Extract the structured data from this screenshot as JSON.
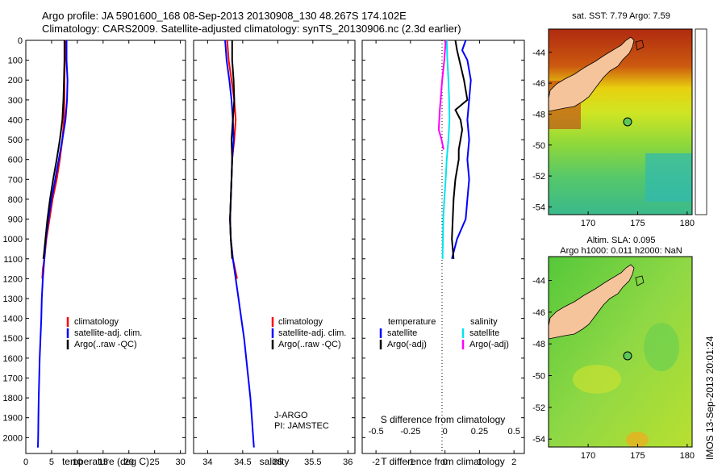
{
  "header": {
    "line1": "Argo profile: JA 5901600_168 08-Sep-2013 20130908_130 48.267S 174.102E",
    "line2": "Climatology: CARS2009. Satellite-adjusted climatology: synTS_20130906.nc (2.3d earlier)"
  },
  "colors": {
    "climatology": "#ff0000",
    "satellite": "#0000ff",
    "argo": "#000000",
    "salinity_satellite": "#00e5ee",
    "salinity_argo": "#ff00ff",
    "land": "#f6c49b"
  },
  "chart_data": [
    {
      "type": "line",
      "name": "temperature-panel",
      "xlabel": "temperature (deg C)",
      "xlim": [
        0,
        31
      ],
      "xticks": [
        0,
        5,
        10,
        15,
        20,
        25,
        30
      ],
      "ylim": [
        2080,
        0
      ],
      "yticks": [
        0,
        100,
        200,
        300,
        400,
        500,
        600,
        700,
        800,
        900,
        1000,
        1100,
        1200,
        1300,
        1400,
        1500,
        1600,
        1700,
        1800,
        1900,
        2000
      ],
      "legend": {
        "placement": "lower-center",
        "entries": [
          "climatology",
          "satellite-adj. clim.",
          "Argo(..raw -QC)"
        ]
      },
      "series": [
        {
          "name": "climatology",
          "color": "#ff0000",
          "x": [
            7.6,
            7.6,
            7.5,
            7.5,
            7.4,
            7.1,
            6.6,
            6.0,
            5.2,
            4.6,
            4.0,
            3.6,
            3.3,
            3.2
          ],
          "y": [
            0,
            100,
            200,
            300,
            400,
            500,
            600,
            700,
            800,
            900,
            1000,
            1100,
            1150,
            1200
          ]
        },
        {
          "name": "satellite-adj. clim.",
          "color": "#0000ff",
          "x": [
            7.9,
            7.9,
            8.1,
            8.0,
            7.7,
            7.1,
            6.4,
            5.7,
            5.0,
            4.4,
            3.9,
            3.6,
            3.3,
            3.1,
            3.0,
            2.85,
            2.7,
            2.6,
            2.5,
            2.45,
            2.4,
            2.35
          ],
          "y": [
            0,
            100,
            200,
            300,
            400,
            500,
            600,
            700,
            800,
            900,
            1000,
            1100,
            1200,
            1300,
            1400,
            1500,
            1600,
            1700,
            1800,
            1900,
            2000,
            2050
          ]
        },
        {
          "name": "Argo(..raw -QC)",
          "color": "#000000",
          "x": [
            7.5,
            7.5,
            7.4,
            7.3,
            7.1,
            6.6,
            6.0,
            5.3,
            4.7,
            4.2,
            3.8,
            3.5,
            3.4
          ],
          "y": [
            0,
            100,
            200,
            300,
            400,
            500,
            600,
            700,
            800,
            900,
            1000,
            1080,
            1100
          ]
        }
      ]
    },
    {
      "type": "line",
      "name": "salinity-panel",
      "xlabel": "salinity",
      "xlim": [
        33.8,
        36.1
      ],
      "xticks": [
        34,
        34.5,
        35,
        35.5,
        36
      ],
      "ylim": [
        2080,
        0
      ],
      "legend": {
        "placement": "lower-right",
        "entries": [
          "climatology",
          "satellite-adj. clim.",
          "Argo(..raw -QC)"
        ]
      },
      "annotations": [
        "J-ARGO",
        "PI: JAMSTEC"
      ],
      "series": [
        {
          "name": "climatology",
          "color": "#ff0000",
          "x": [
            34.28,
            34.3,
            34.34,
            34.38,
            34.4,
            34.38,
            34.35,
            34.34,
            34.33,
            34.32,
            34.33,
            34.36,
            34.39,
            34.42
          ],
          "y": [
            0,
            100,
            200,
            300,
            400,
            500,
            600,
            700,
            800,
            900,
            1000,
            1100,
            1150,
            1200
          ]
        },
        {
          "name": "satellite-adj. clim.",
          "color": "#0000ff",
          "x": [
            34.25,
            34.27,
            34.31,
            34.34,
            34.36,
            34.37,
            34.35,
            34.34,
            34.33,
            34.32,
            34.33,
            34.36,
            34.4,
            34.44,
            34.48,
            34.52,
            34.55,
            34.58,
            34.61,
            34.63,
            34.65,
            34.66
          ],
          "y": [
            0,
            100,
            200,
            300,
            400,
            500,
            600,
            700,
            800,
            900,
            1000,
            1100,
            1200,
            1300,
            1400,
            1500,
            1600,
            1700,
            1800,
            1900,
            2000,
            2050
          ]
        },
        {
          "name": "Argo(..raw -QC)",
          "color": "#000000",
          "x": [
            34.35,
            34.35,
            34.37,
            34.38,
            34.36,
            34.34,
            34.35,
            34.34,
            34.33,
            34.32,
            34.33,
            34.35
          ],
          "y": [
            0,
            100,
            200,
            300,
            400,
            500,
            600,
            700,
            800,
            900,
            1000,
            1100
          ]
        }
      ]
    },
    {
      "type": "line",
      "name": "difference-panel",
      "xlabel": "T difference from climatology",
      "xlabel2": "S difference from climatology",
      "xlim": [
        -2.4,
        2.3
      ],
      "xticks": [
        -2,
        -1,
        0,
        1,
        2
      ],
      "x2ticks": [
        "-0.5",
        "-0.25",
        "0",
        "0.25",
        "0.5"
      ],
      "ylim": [
        2080,
        0
      ],
      "legend": {
        "placement": "lower-center",
        "headers": [
          "temperature",
          "salinity"
        ],
        "entries": [
          "satellite",
          "Argo(-adj)",
          "satellite",
          "Argo(-adj)"
        ]
      },
      "series": [
        {
          "name": "temperature satellite",
          "color": "#0000ff",
          "x": [
            0.6,
            0.5,
            0.65,
            0.75,
            0.7,
            0.65,
            0.7,
            0.65,
            0.7,
            0.65,
            0.6,
            0.35,
            0.2
          ],
          "y": [
            0,
            50,
            100,
            200,
            300,
            400,
            500,
            600,
            700,
            800,
            900,
            1000,
            1100
          ]
        },
        {
          "name": "temperature Argo(-adj)",
          "color": "#000000",
          "x": [
            0.3,
            0.35,
            0.55,
            0.65,
            0.3,
            0.45,
            0.5,
            0.45,
            0.4,
            0.4,
            0.3,
            0.25,
            0.2,
            0.25
          ],
          "y": [
            0,
            50,
            200,
            300,
            350,
            400,
            450,
            500,
            550,
            600,
            700,
            800,
            1000,
            1100
          ]
        },
        {
          "name": "salinity satellite",
          "color": "#00e5ee",
          "x": [
            0.05,
            0.07,
            0.1,
            0.12,
            0.13,
            0.1,
            0.05,
            0.02,
            -0.02,
            -0.05,
            -0.06,
            -0.07
          ],
          "y": [
            0,
            100,
            200,
            300,
            400,
            500,
            600,
            700,
            800,
            900,
            1000,
            1100
          ]
        },
        {
          "name": "salinity Argo(-adj)",
          "color": "#ff00ff",
          "x": [
            0.02,
            -0.02,
            -0.08,
            -0.15,
            -0.18,
            -0.1,
            -0.04
          ],
          "y": [
            0,
            100,
            200,
            350,
            450,
            500,
            550
          ]
        }
      ]
    },
    {
      "type": "heatmap",
      "name": "sst-map",
      "title": "sat. SST: 7.79 Argo: 7.59",
      "xlim": [
        166,
        180.5
      ],
      "ylim": [
        -54.5,
        -42.5
      ],
      "xticks": [
        170,
        175,
        180
      ],
      "yticks": [
        -44,
        -46,
        -48,
        -50,
        -52,
        -54
      ],
      "profile_location": [
        174.102,
        -48.267
      ]
    },
    {
      "type": "heatmap",
      "name": "sla-map",
      "title": "Altim. SLA: 0.095",
      "subtitle": "Argo h1000: 0.011 h2000: NaN",
      "xlim": [
        166,
        180.5
      ],
      "ylim": [
        -54.5,
        -42.5
      ],
      "xticks": [
        170,
        175,
        180
      ],
      "yticks": [
        -44,
        -46,
        -48,
        -50,
        -52,
        -54
      ],
      "profile_location": [
        174.102,
        -48.267
      ]
    }
  ],
  "stamp": "IMOS 13-Sep-2013 20:01:24"
}
